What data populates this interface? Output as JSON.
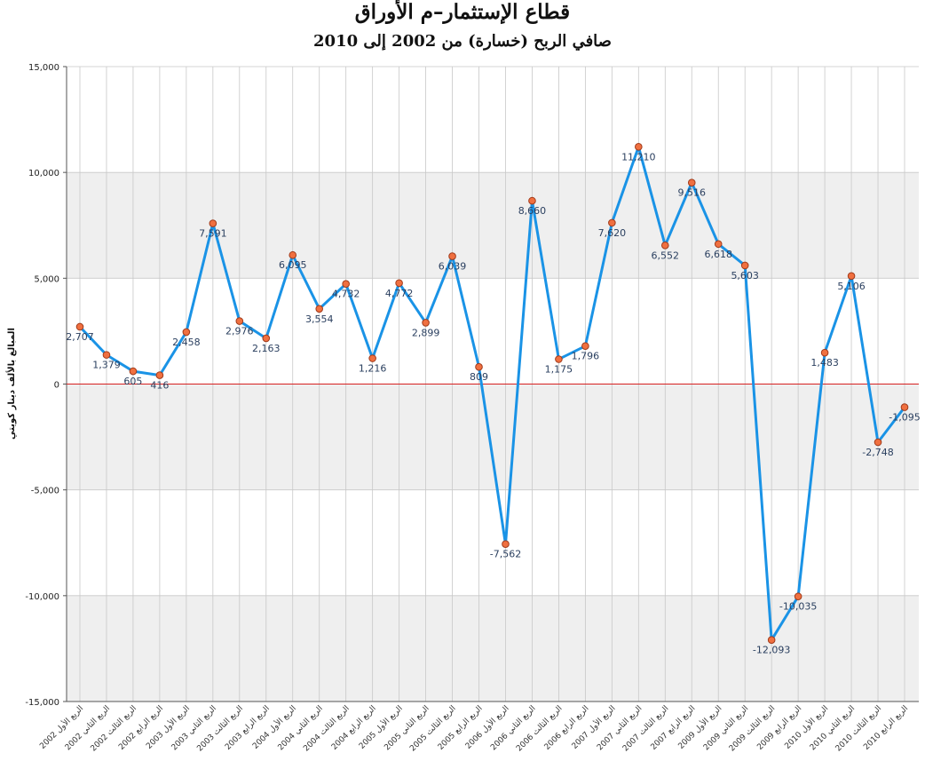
{
  "chart_data": {
    "type": "line",
    "title": "قطاع الإستثمار–م الأوراق",
    "subtitle": "صافي الربح (خسارة) من 2002 إلى 2010",
    "ylabel": "المبالغ بالألف دينار كويتي",
    "xlabel": "",
    "ylim": [
      -15000,
      15000
    ],
    "yticks": [
      "15,000",
      "10,000",
      "5,000",
      "0",
      "-5,000",
      "-10,000",
      "-15,000"
    ],
    "ytick_values": [
      15000,
      10000,
      5000,
      0,
      -5000,
      -10000,
      -15000
    ],
    "grid": true,
    "legend": "none",
    "categories": [
      "الربع الأول 2002",
      "الربع الثاني 2002",
      "الربع الثالث 2002",
      "الربع الرابع 2002",
      "الربع الأول 2003",
      "الربع الثاني 2003",
      "الربع الثالث 2003",
      "الربع الرابع 2003",
      "الربع الأول 2004",
      "الربع الثاني 2004",
      "الربع الثالث 2004",
      "الربع الرابع 2004",
      "الربع الأول 2005",
      "الربع الثاني 2005",
      "الربع الثالث 2005",
      "الربع الرابع 2005",
      "الربع الأول 2006",
      "الربع الثاني 2006",
      "الربع الثالث 2006",
      "الربع الرابع 2006",
      "الربع الأول 2007",
      "الربع الثاني 2007",
      "الربع الثالث 2007",
      "الربع الرابع 2007",
      "الربع الأول 2009",
      "الربع الثاني 2009",
      "الربع الثالث 2009",
      "الربع الرابع 2009",
      "الربع الأول 2010",
      "الربع الثاني 2010",
      "الربع الثالث 2010",
      "الربع الرابع 2010"
    ],
    "series": [
      {
        "values": [
          2707,
          1379,
          605,
          416,
          2458,
          7591,
          2976,
          2163,
          6095,
          3554,
          4732,
          1216,
          4772,
          2899,
          6039,
          809,
          -7562,
          8660,
          1175,
          1796,
          7620,
          11210,
          6552,
          9516,
          6618,
          5603,
          -12093,
          -10035,
          1483,
          5106,
          -2748,
          -1095
        ],
        "labels": [
          "2,707",
          "1,379",
          "605",
          "416",
          "2,458",
          "7,591",
          "2,976",
          "2,163",
          "6,095",
          "3,554",
          "4,732",
          "1,216",
          "4,772",
          "2,899",
          "6,039",
          "809",
          "-7,562",
          "8,660",
          "1,175",
          "1,796",
          "7,620",
          "11,210",
          "6,552",
          "9,516",
          "6,618",
          "5,603",
          "-12,093",
          "-10,035",
          "1,483",
          "5,106",
          "-2,748",
          "-1,095"
        ]
      }
    ],
    "colors": {
      "line": "#1a93e6",
      "marker_fill": "#f07040",
      "marker_stroke": "#a03a1a",
      "zero_line": "#d62020",
      "band": "#efefef",
      "grid": "#c8c8c8"
    }
  }
}
